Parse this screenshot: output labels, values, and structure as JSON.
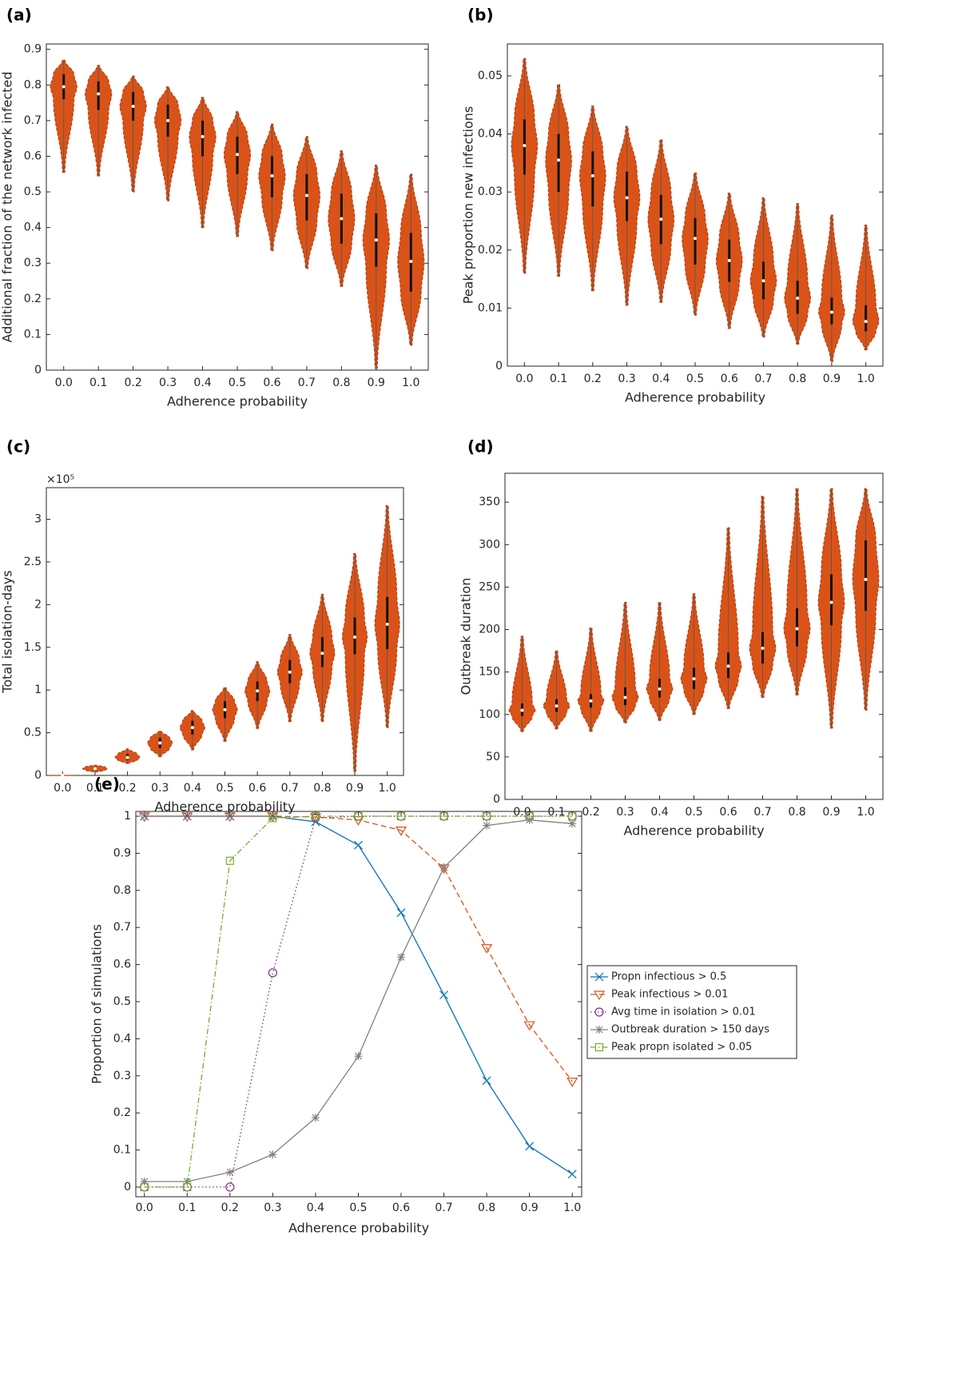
{
  "chart_data": [
    {
      "type": "violin",
      "label": "(a)",
      "xlabel": "Adherence probability",
      "ylabel": "Additional fraction of the network infected",
      "categories": [
        "0.0",
        "0.1",
        "0.2",
        "0.3",
        "0.4",
        "0.5",
        "0.6",
        "0.7",
        "0.8",
        "0.9",
        "1.0"
      ],
      "median": [
        0.795,
        0.775,
        0.74,
        0.7,
        0.655,
        0.605,
        0.545,
        0.49,
        0.425,
        0.365,
        0.305
      ],
      "q1": [
        0.76,
        0.73,
        0.7,
        0.655,
        0.6,
        0.55,
        0.485,
        0.42,
        0.355,
        0.29,
        0.22
      ],
      "q3": [
        0.83,
        0.81,
        0.78,
        0.745,
        0.7,
        0.655,
        0.6,
        0.55,
        0.495,
        0.44,
        0.385
      ],
      "min": [
        0.555,
        0.545,
        0.5,
        0.475,
        0.4,
        0.375,
        0.335,
        0.285,
        0.235,
        0.005,
        0.07
      ],
      "max": [
        0.87,
        0.855,
        0.825,
        0.795,
        0.765,
        0.725,
        0.69,
        0.655,
        0.615,
        0.575,
        0.55
      ],
      "ylim": [
        0,
        0.915
      ],
      "yticks": [
        0,
        0.1,
        0.2,
        0.3,
        0.4,
        0.5,
        0.6,
        0.7,
        0.8,
        0.9
      ],
      "color": "#d95319"
    },
    {
      "type": "violin",
      "label": "(b)",
      "xlabel": "Adherence probability",
      "ylabel": "Peak proportion new infections",
      "categories": [
        "0.0",
        "0.1",
        "0.2",
        "0.3",
        "0.4",
        "0.5",
        "0.6",
        "0.7",
        "0.8",
        "0.9",
        "1.0"
      ],
      "median": [
        0.038,
        0.0355,
        0.0328,
        0.029,
        0.0253,
        0.022,
        0.0182,
        0.0147,
        0.0117,
        0.0093,
        0.0077
      ],
      "q1": [
        0.033,
        0.03,
        0.0275,
        0.025,
        0.021,
        0.0175,
        0.0145,
        0.0115,
        0.009,
        0.0072,
        0.006
      ],
      "q3": [
        0.0425,
        0.04,
        0.037,
        0.0335,
        0.0295,
        0.0255,
        0.0218,
        0.018,
        0.0147,
        0.0118,
        0.0105
      ],
      "min": [
        0.016,
        0.0155,
        0.013,
        0.0105,
        0.011,
        0.0088,
        0.0065,
        0.005,
        0.0038,
        0.0008,
        0.0028
      ],
      "max": [
        0.053,
        0.0485,
        0.0448,
        0.0413,
        0.039,
        0.0333,
        0.0298,
        0.029,
        0.028,
        0.026,
        0.0243
      ],
      "ylim": [
        0,
        0.0555
      ],
      "yticks": [
        0,
        0.01,
        0.02,
        0.03,
        0.04,
        0.05
      ],
      "color": "#d95319"
    },
    {
      "type": "violin",
      "label": "(c)",
      "xlabel": "Adherence probability",
      "ylabel": "Total isolation-days",
      "y_exponent_label": "×10⁵",
      "categories": [
        "0.0",
        "0.1",
        "0.2",
        "0.3",
        "0.4",
        "0.5",
        "0.6",
        "0.7",
        "0.8",
        "0.9",
        "1.0"
      ],
      "median": [
        0,
        0.08,
        0.21,
        0.38,
        0.56,
        0.77,
        0.99,
        1.21,
        1.43,
        1.62,
        1.77
      ],
      "q1": [
        0,
        0.06,
        0.18,
        0.32,
        0.48,
        0.67,
        0.87,
        1.08,
        1.27,
        1.42,
        1.48
      ],
      "q3": [
        0,
        0.1,
        0.25,
        0.44,
        0.64,
        0.87,
        1.1,
        1.35,
        1.62,
        1.85,
        2.09
      ],
      "min": [
        0,
        0.04,
        0.14,
        0.22,
        0.3,
        0.4,
        0.55,
        0.63,
        0.63,
        0.05,
        0.56
      ],
      "max": [
        0,
        0.12,
        0.31,
        0.52,
        0.76,
        1.03,
        1.33,
        1.65,
        2.12,
        2.6,
        3.16
      ],
      "ylim": [
        0,
        3.37
      ],
      "yticks": [
        0,
        0.5,
        1,
        1.5,
        2,
        2.5,
        3
      ],
      "color": "#d95319"
    },
    {
      "type": "violin",
      "label": "(d)",
      "xlabel": "Adherence probability",
      "ylabel": "Outbreak duration",
      "categories": [
        "0.0",
        "0.1",
        "0.2",
        "0.3",
        "0.4",
        "0.5",
        "0.6",
        "0.7",
        "0.8",
        "0.9",
        "1.0"
      ],
      "median": [
        105,
        110,
        116,
        120,
        130,
        142,
        157,
        178,
        201,
        232,
        259
      ],
      "q1": [
        98,
        103,
        108,
        111,
        120,
        130,
        143,
        160,
        180,
        205,
        222
      ],
      "q3": [
        113,
        118,
        124,
        132,
        142,
        155,
        173,
        197,
        225,
        265,
        305
      ],
      "min": [
        80,
        83,
        80,
        90,
        93,
        100,
        107,
        120,
        123,
        84,
        105
      ],
      "max": [
        192,
        175,
        202,
        232,
        232,
        242,
        320,
        357,
        366,
        366,
        366
      ],
      "ylim": [
        0,
        384
      ],
      "yticks": [
        0,
        50,
        100,
        150,
        200,
        250,
        300,
        350
      ],
      "color": "#d95319"
    },
    {
      "type": "line",
      "label": "(e)",
      "xlabel": "Adherence probability",
      "ylabel": "Proportion of simulations",
      "x": [
        0,
        0.1,
        0.2,
        0.3,
        0.4,
        0.5,
        0.6,
        0.7,
        0.8,
        0.9,
        1
      ],
      "series": [
        {
          "name": "Propn infectious > 0.5",
          "color": "#0072bd",
          "marker": "x",
          "dash": "solid",
          "values": [
            1,
            1,
            1,
            1,
            0.985,
            0.922,
            0.74,
            0.518,
            0.287,
            0.11,
            0.035
          ]
        },
        {
          "name": "Peak infectious > 0.01",
          "color": "#d95319",
          "marker": "triangle-down",
          "dash": "dashed",
          "values": [
            1,
            1,
            1,
            1,
            0.998,
            0.99,
            0.962,
            0.86,
            0.645,
            0.437,
            0.285
          ]
        },
        {
          "name": "Avg time in isolation > 0.01",
          "color": "#7e2f8e",
          "marker": "circle",
          "dash": "dotted",
          "values": [
            0,
            0,
            0,
            0.578,
            0.995,
            1,
            1,
            1,
            1,
            1,
            1
          ]
        },
        {
          "name": "Outbreak duration > 150 days",
          "color": "#808080",
          "marker": "star",
          "dash": "solid",
          "values": [
            0.015,
            0.015,
            0.04,
            0.088,
            0.187,
            0.353,
            0.62,
            0.862,
            0.975,
            0.99,
            0.98
          ]
        },
        {
          "name": "Peak propn isolated > 0.05",
          "color": "#77ac30",
          "marker": "square",
          "dash": "dashdot",
          "values": [
            0,
            0,
            0.88,
            0.995,
            1,
            1,
            1,
            1,
            1,
            1,
            1
          ]
        }
      ],
      "xlim": [
        -0.02,
        1.022
      ],
      "ylim": [
        -0.026,
        1.013
      ],
      "xticks": [
        {
          "value": 0,
          "label": "0.0"
        },
        {
          "value": 0.1,
          "label": "0.1"
        },
        {
          "value": 0.2,
          "label": "0.2"
        },
        {
          "value": 0.3,
          "label": "0.3"
        },
        {
          "value": 0.4,
          "label": "0.4"
        },
        {
          "value": 0.5,
          "label": "0.5"
        },
        {
          "value": 0.6,
          "label": "0.6"
        },
        {
          "value": 0.7,
          "label": "0.7"
        },
        {
          "value": 0.8,
          "label": "0.8"
        },
        {
          "value": 0.9,
          "label": "0.9"
        },
        {
          "value": 1,
          "label": "1.0"
        }
      ],
      "yticks": [
        0,
        0.1,
        0.2,
        0.3,
        0.4,
        0.5,
        0.6,
        0.7,
        0.8,
        0.9,
        1
      ],
      "legend": "outside-right"
    }
  ]
}
